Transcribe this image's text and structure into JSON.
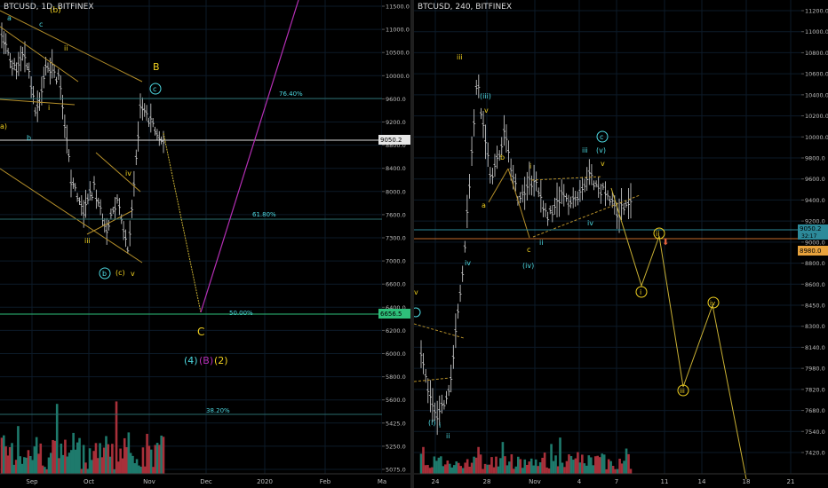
{
  "left_pane": {
    "header": "BTCUSD, 1D, BITFINEX",
    "price_axis": [
      "11500.0",
      "11000.0",
      "10500.0",
      "10000.0",
      "9600.0",
      "9200.0",
      "8800.0",
      "8400.0",
      "8000.0",
      "7600.0",
      "7300.0",
      "7000.0",
      "6600.0",
      "6400.0",
      "6200.0",
      "6000.0",
      "5800.0",
      "5600.0",
      "5425.0",
      "5250.0",
      "5075.0"
    ],
    "last_price": "9050.2",
    "level_price": "6656.5",
    "time_axis": [
      "Sep",
      "Oct",
      "Nov",
      "Dec",
      "2020",
      "Feb",
      "Ma"
    ],
    "fib_levels": [
      "76.40%",
      "61.80%",
      "50.00%",
      "38.20%"
    ],
    "wave_labels": {
      "a": "a",
      "c": "c",
      "b": "b",
      "b_top": "(b)",
      "a_paren": "a)",
      "ii": "ii",
      "i": "i",
      "B": "B",
      "c_circ": "c",
      "iv": "iv",
      "iii": "iii",
      "b_circ": "b",
      "c_paren": "(c)",
      "v": "v",
      "C": "C",
      "w4": "(4)",
      "wB": "(B)",
      "w2": "(2)"
    }
  },
  "right_pane": {
    "header": "BTCUSD, 240, BITFINEX",
    "price_axis": [
      "11200.0",
      "11000.0",
      "10800.0",
      "10600.0",
      "10400.0",
      "10200.0",
      "10000.0",
      "9800.0",
      "9600.0",
      "9400.0",
      "9200.0",
      "9000.0",
      "8800.0",
      "8600.0",
      "8450.0",
      "8300.0",
      "8140.0",
      "7980.0",
      "7820.0",
      "7680.0",
      "7540.0",
      "7420.0"
    ],
    "last_price": "9050.2",
    "countdown": "32:17",
    "level_price": "8980.0",
    "time_axis": [
      "24",
      "28",
      "Nov",
      "4",
      "7",
      "11",
      "14",
      "18",
      "21"
    ],
    "wave_labels": {
      "v_left": "v",
      "iii": "iii",
      "iii_paren": "(iii)",
      "v": "v",
      "b": "b",
      "a": "a",
      "iv": "iv",
      "i": "i",
      "c": "c",
      "ii": "ii",
      "iv_paren": "(iv)",
      "iii2": "iii",
      "c_circ": "c",
      "v_paren": "(v)",
      "v2": "v",
      "iv2": "iv",
      "i_paren": "(i)",
      "i2": "i",
      "ii2": "ii",
      "p_i": "i",
      "p_ii": "ii",
      "p_iii": "iii",
      "p_iv": "iv"
    }
  },
  "colors": {
    "cyan": "#4dd8e0",
    "yellow": "#f0d020",
    "green": "#32c46c",
    "magenta": "#b52fb5",
    "orange": "#e8a33d",
    "grid": "#0c1a28"
  }
}
